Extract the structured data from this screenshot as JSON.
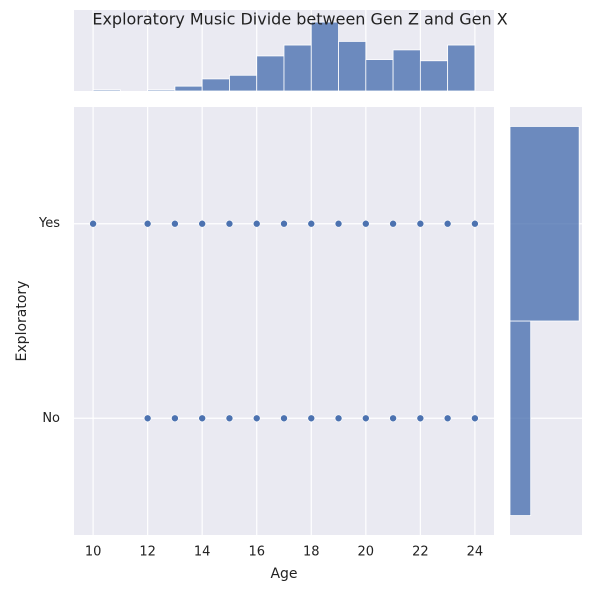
{
  "chart_data": [
    {
      "type": "scatter",
      "title": "Exploratory Music Divide between Gen Z and Gen X",
      "x_label": "Age",
      "y_label": "Exploratory",
      "x": [
        10,
        12,
        13,
        14,
        15,
        16,
        17,
        18,
        19,
        20,
        21,
        22,
        23,
        24,
        12,
        13,
        14,
        15,
        16,
        17,
        18,
        19,
        20,
        21,
        22,
        23,
        24
      ],
      "y": [
        1,
        1,
        1,
        1,
        1,
        1,
        1,
        1,
        1,
        1,
        1,
        1,
        1,
        1,
        0,
        0,
        0,
        0,
        0,
        0,
        0,
        0,
        0,
        0,
        0,
        0,
        0
      ],
      "color": "#4c72b0",
      "xlim": [
        9.3,
        24.7
      ],
      "xticks": [
        10,
        12,
        14,
        16,
        18,
        20,
        22,
        24
      ],
      "ylim": [
        -0.6,
        1.6
      ],
      "yticks": [
        {
          "value": 0,
          "label": "No"
        },
        {
          "value": 1,
          "label": "Yes"
        }
      ],
      "grid": true
    },
    {
      "type": "histogram",
      "orientation": "vertical",
      "bins": [
        10,
        11,
        12,
        13,
        14,
        15,
        16,
        17,
        18,
        19,
        20,
        21,
        22,
        23,
        24
      ],
      "values": [
        1,
        0,
        1,
        4,
        10,
        13,
        29,
        38,
        57,
        41,
        26,
        34,
        25,
        38
      ],
      "color": "#4c72b0",
      "xlim": [
        9.3,
        24.7
      ],
      "ylim": [
        0,
        67
      ]
    },
    {
      "type": "histogram",
      "orientation": "horizontal",
      "bins": [
        -0.5,
        0.5,
        1.5
      ],
      "values": [
        73,
        244
      ],
      "color": "#4c72b0",
      "ylim": [
        -0.6,
        1.6
      ],
      "xlim": [
        0,
        254
      ]
    }
  ]
}
